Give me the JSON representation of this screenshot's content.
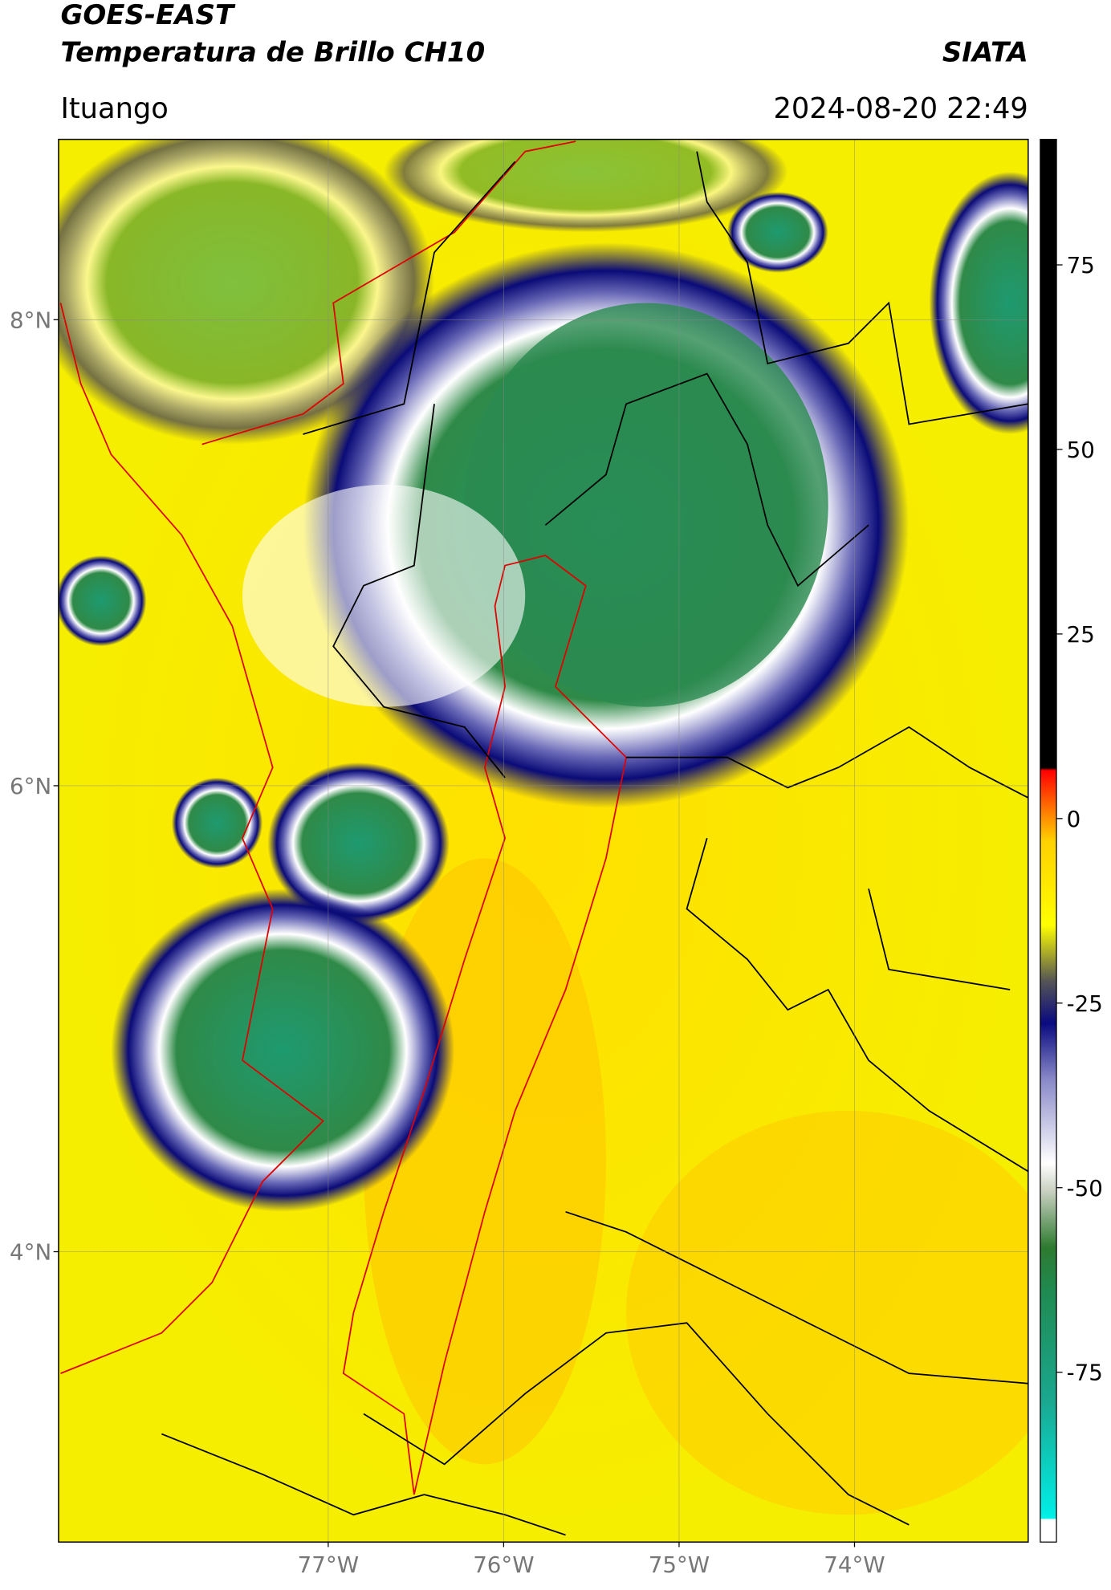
{
  "header": {
    "title": "GOES-EAST",
    "subtitle": "Temperatura de Brillo CH10",
    "brand": "SIATA",
    "location": "Ituango",
    "timestamp": "2024-08-20 22:49"
  },
  "map": {
    "latlim": [
      2.754,
      8.774
    ],
    "lonlim": [
      -78.537,
      -73.01
    ],
    "lat_ticks": [
      {
        "value": 8,
        "label": "8°N"
      },
      {
        "value": 6,
        "label": "6°N"
      },
      {
        "value": 4,
        "label": "4°N"
      }
    ],
    "lon_ticks": [
      {
        "value": -77,
        "label": "77°W"
      },
      {
        "value": -76,
        "label": "76°W"
      },
      {
        "value": -75,
        "label": "75°W"
      },
      {
        "value": -74,
        "label": "74°W"
      }
    ],
    "colorbar": {
      "range": [
        -98,
        92
      ],
      "ticks": [
        75,
        50,
        25,
        0,
        -25,
        -50,
        -75
      ]
    }
  }
}
